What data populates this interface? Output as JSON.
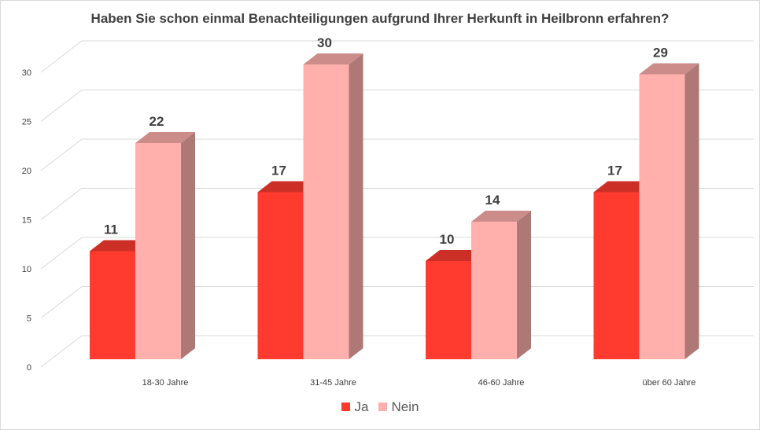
{
  "chart_data": {
    "type": "bar",
    "title": "Haben Sie schon einmal Benachteiligungen aufgrund Ihrer Herkunft in Heilbronn erfahren?",
    "categories": [
      "18-30 Jahre",
      "31-45 Jahre",
      "46-60 Jahre",
      "über 60 Jahre"
    ],
    "series": [
      {
        "name": "Ja",
        "values": [
          11,
          17,
          10,
          17
        ],
        "color": "#ff3b30"
      },
      {
        "name": "Nein",
        "values": [
          22,
          30,
          14,
          29
        ],
        "color": "#ffb0ac"
      }
    ],
    "ylim": [
      0,
      30
    ],
    "yticks": [
      0,
      5,
      10,
      15,
      20,
      25,
      30
    ],
    "grid": true,
    "legend": "bottom",
    "style": "3d-column"
  }
}
